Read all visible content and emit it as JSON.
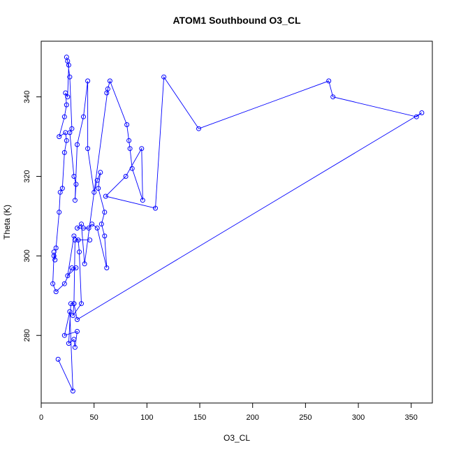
{
  "chart_data": {
    "type": "line",
    "title": "ATOM1 Southbound O3_CL",
    "xlabel": "O3_CL",
    "ylabel": "Theta (K)",
    "xlim": [
      0,
      370
    ],
    "ylim": [
      263,
      354
    ],
    "x_ticks": [
      0,
      50,
      100,
      150,
      200,
      250,
      300,
      350
    ],
    "y_ticks": [
      280,
      300,
      320,
      340
    ],
    "grid": false,
    "legend": "none",
    "series_color": "#0000ff",
    "series": [
      {
        "points": [
          [
            16,
            274
          ],
          [
            30,
            266
          ],
          [
            27,
            286
          ],
          [
            22,
            280
          ],
          [
            34,
            281
          ],
          [
            32,
            277
          ],
          [
            31,
            279
          ],
          [
            26,
            278
          ],
          [
            28,
            288
          ],
          [
            31,
            288
          ],
          [
            30,
            285
          ],
          [
            38,
            288
          ],
          [
            36,
            301
          ],
          [
            35,
            304
          ],
          [
            31,
            305
          ],
          [
            25,
            295
          ],
          [
            33,
            297
          ],
          [
            29,
            297
          ],
          [
            22,
            293
          ],
          [
            14,
            291
          ],
          [
            11,
            293
          ],
          [
            12,
            300
          ],
          [
            12,
            301
          ],
          [
            13,
            299
          ],
          [
            14,
            302
          ],
          [
            17,
            311
          ],
          [
            18,
            316
          ],
          [
            20,
            317
          ],
          [
            22,
            326
          ],
          [
            24,
            329
          ],
          [
            23,
            331
          ],
          [
            17,
            330
          ],
          [
            22,
            335
          ],
          [
            24,
            338
          ],
          [
            23,
            341
          ],
          [
            25,
            340
          ],
          [
            26,
            348
          ],
          [
            24,
            350
          ],
          [
            25,
            349
          ],
          [
            27,
            345
          ],
          [
            29,
            332
          ],
          [
            27,
            331
          ],
          [
            31,
            320
          ],
          [
            33,
            318
          ],
          [
            32,
            314
          ],
          [
            34,
            328
          ],
          [
            40,
            335
          ],
          [
            44,
            344
          ],
          [
            44,
            327
          ],
          [
            50,
            316
          ],
          [
            53,
            319
          ],
          [
            56,
            321
          ],
          [
            54,
            317
          ],
          [
            60,
            311
          ],
          [
            57,
            308
          ],
          [
            60,
            305
          ],
          [
            62,
            297
          ],
          [
            53,
            307
          ],
          [
            48,
            308
          ],
          [
            45,
            307
          ],
          [
            40,
            307
          ],
          [
            34,
            307
          ],
          [
            38,
            308
          ],
          [
            41,
            298
          ],
          [
            63,
            342
          ],
          [
            62,
            341
          ],
          [
            65,
            344
          ],
          [
            81,
            333
          ],
          [
            83,
            329
          ],
          [
            84,
            327
          ],
          [
            86,
            322
          ],
          [
            96,
            314
          ],
          [
            95,
            327
          ],
          [
            80,
            320
          ],
          [
            61,
            315
          ],
          [
            108,
            312
          ],
          [
            116,
            345
          ],
          [
            149,
            332
          ],
          [
            272,
            344
          ],
          [
            276,
            340
          ],
          [
            355,
            335
          ],
          [
            360,
            336
          ],
          [
            34,
            284
          ],
          [
            31,
            288
          ],
          [
            32,
            304
          ],
          [
            46,
            304
          ]
        ]
      }
    ]
  }
}
